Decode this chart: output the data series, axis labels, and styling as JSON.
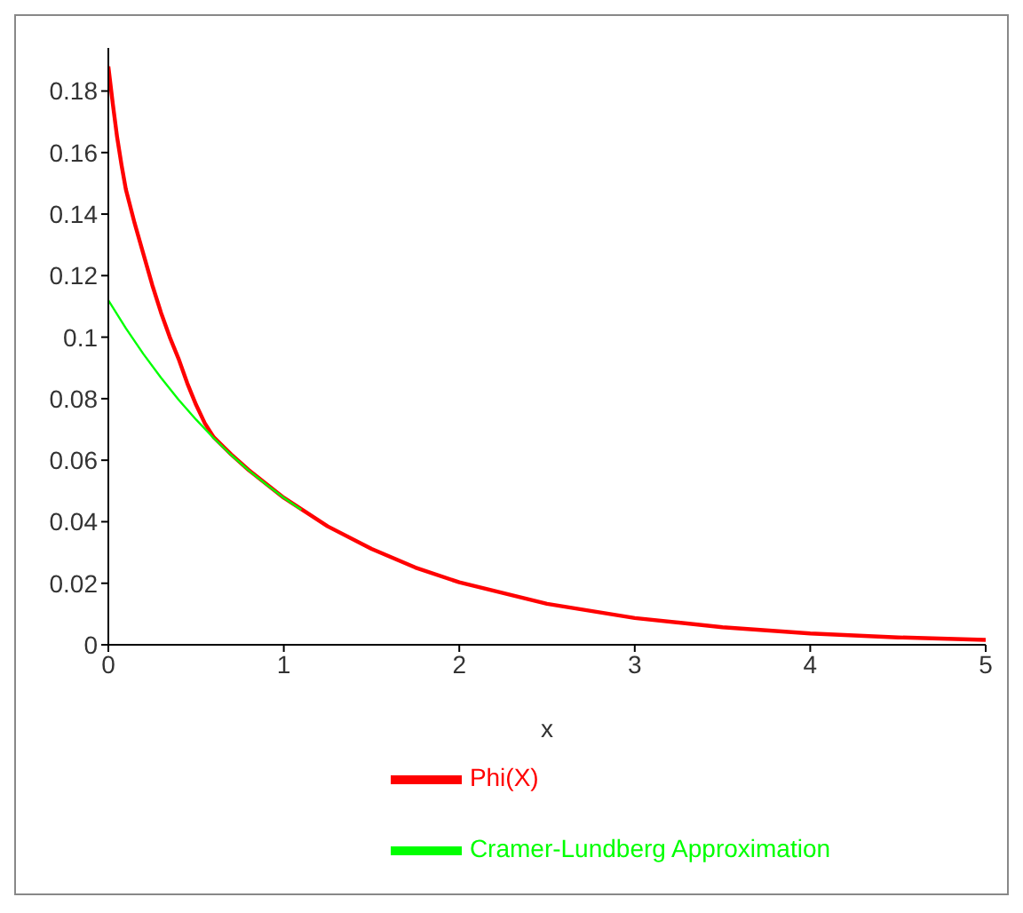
{
  "chart_data": {
    "type": "line",
    "xlabel": "x",
    "xlim": [
      0,
      5
    ],
    "xticks": [
      0,
      1,
      2,
      3,
      4,
      5
    ],
    "ylim": [
      0,
      0.194
    ],
    "yticks": [
      0,
      0.02,
      0.04,
      0.06,
      0.08,
      0.1,
      0.12,
      0.14,
      0.16,
      0.18
    ],
    "grid": false,
    "legend": "bottom",
    "marker": "none",
    "line_style": "solid",
    "series": [
      {
        "name": "Phi(X)",
        "color": "#ff0000",
        "x": [
          0,
          0.025,
          0.05,
          0.075,
          0.1,
          0.15,
          0.2,
          0.25,
          0.3,
          0.35,
          0.4,
          0.45,
          0.5,
          0.55,
          0.6,
          0.7,
          0.8,
          1,
          1.25,
          1.5,
          1.75,
          2,
          2.5,
          3,
          3.5,
          4,
          4.5,
          5
        ],
        "values": [
          0.188,
          0.176,
          0.165,
          0.156,
          0.148,
          0.137,
          0.127,
          0.117,
          0.108,
          0.1,
          0.093,
          0.085,
          0.078,
          0.072,
          0.0675,
          0.0619,
          0.0568,
          0.0478,
          0.0385,
          0.0312,
          0.0251,
          0.0203,
          0.0133,
          0.0087,
          0.0057,
          0.0037,
          0.0024,
          0.0016
        ]
      },
      {
        "name": "Cramer-Lundberg Approximation",
        "color": "#00ff00",
        "x": [
          0,
          0.1,
          0.2,
          0.3,
          0.4,
          0.5,
          0.6,
          0.7,
          0.8,
          0.9,
          1,
          1.1
        ],
        "values": [
          0.112,
          0.1029,
          0.0945,
          0.0868,
          0.0797,
          0.0732,
          0.0672,
          0.0617,
          0.0567,
          0.0521,
          0.0478,
          0.0439
        ]
      }
    ]
  }
}
